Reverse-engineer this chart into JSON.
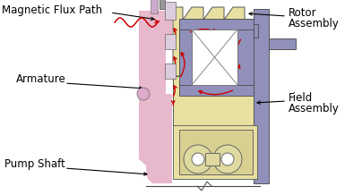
{
  "bg_color": "#ffffff",
  "rotor_color": "#e8e0a0",
  "rotor_outline": "#555555",
  "field_color": "#9090bb",
  "field_outline": "#555555",
  "armature_color": "#e8b8cc",
  "armature_outline": "#555555",
  "coil_color": "#e8e0a0",
  "coil_outline": "#666666",
  "flux_color": "#cc0000",
  "labels": {
    "magnetic_flux": "Magnetic Flux Path",
    "armature": "Armature",
    "pump_shaft": "Pump Shaft",
    "rotor": [
      "Rotor",
      "Assembly"
    ],
    "field": [
      "Field",
      "Assembly"
    ]
  }
}
